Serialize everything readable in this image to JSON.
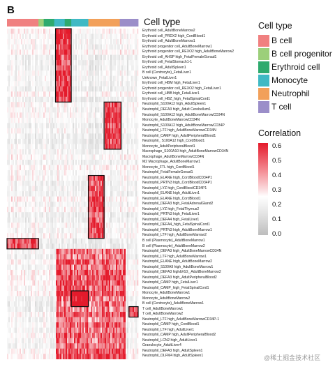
{
  "panel_letter": "B",
  "cell_type_header": "Cell type",
  "legend": {
    "title": "Cell type",
    "items": [
      {
        "label": "B cell",
        "color": "#f08080"
      },
      {
        "label": "B cell progenitor",
        "color": "#9ccf7a"
      },
      {
        "label": "Erythroid cell",
        "color": "#2eaa6e"
      },
      {
        "label": "Monocyte",
        "color": "#3fb9c4"
      },
      {
        "label": "Neutrophil",
        "color": "#f2a05a"
      },
      {
        "label": "T cell",
        "color": "#9b8ec9"
      }
    ]
  },
  "colorbar": {
    "title": "Correlation",
    "ticks": [
      "0.6",
      "0.5",
      "0.4",
      "0.3",
      "0.2",
      "0.1",
      "0.0"
    ],
    "high_color": "#e41a2b",
    "mid_color": "#ffffff",
    "low_color": "#bdbdbd"
  },
  "watermark": "@稀土掘金技术社区",
  "chart_data": {
    "type": "heatmap",
    "value_range": [
      0.0,
      0.6
    ],
    "rows": [
      "Erythroid cell_AdultBoneMarrow2",
      "Erythroid cell_PRDX2 high_CordBlood1",
      "Erythroid cell_AdultBoneMarrow1",
      "Erythroid progenitor cell_AdultBoneMarrow1",
      "Erythroid progenitor cell_REXO2 high_AdultBoneMarrow2",
      "Erythroid cell_AHSP high_FetalFemaleGonad1",
      "Erythroid cell_FetalStomach1-1",
      "Erythroid cell_AdultSpleen1",
      "B cell (Centrocyte)_FetalLiver1",
      "Unknown_FetalLiver1",
      "Erythroid cell_HBM high_FetalLiver1",
      "Erythroid progenitor cell_REXO2 high_FetalLiver1",
      "Erythroid cell_HBB high_FetalLiver1",
      "Erythroid cell_HBZ_high_FetalSpinalCord1",
      "Neutrophil_S100A12 high_AdultSpleen1",
      "Neutrophil_DEFA3 high_Adult Cerebellum1",
      "Neutrophil_S100A12 high_AdultBoneMarrowCD34N",
      "Monocyte_AdultBoneMarrowCD34N",
      "Neutrophil_S100A12 high_AdultBoneMarrowCD34P",
      "Neutrophil_LTF high_AdultBoneMarrowCD34N",
      "Neutrophil_CAMP high_AdultPeripheralBlood1",
      "Neutrophil_ S100A12 high_CordBlood1",
      "Monocyte_AdultPeripheralBlood1",
      "Macrophage_S100A10 high_AdultBoneMarrowCD34N",
      "Macrophage_AdultBoneMarrowCD34N",
      "M2 Macrophage_AdultBoneMarrow1",
      "Monocyte_FTL high_CordBlood1",
      "Neutrophil_FetalFemaleGonad1",
      "Neutrophil_ELANE high_CordBloodCD34P1",
      "Neutrophil_PRTN3 high_CordBloodCD34P1",
      "Neutrophil_LYZ high_CordBloodCD34P1",
      "Neutrophil_ELANE high_AdultLiver1",
      "Neutrophil_ELANE high_CordBlood1",
      "Neutrophil_DEFA3 high_FetalAdrenalGland2",
      "Neutrophil_LYZ high_FetalThymus2",
      "Neutrophil_PRTN3 high_FetalLiver1",
      "Neutrophil_DEFA4 high_FetalLiver1",
      "Neutrophil_DEFA4_high_FetalSpinalCord1",
      "Neutrophil_PRTN3 high_AdultBoneMarrow1",
      "Neutrophil_LTF high_AdultBoneMarrow2",
      "B cell (Plasmocyte)_AdultBoneMarrow1",
      "B cell (Plasmocyte)_AdultBoneMarrow2",
      "Neutrophil_DEFA3 high_AdultBoneMarrowCD34N",
      "Neutrophil_LTF high_AdultBoneMarrow1",
      "Neutrophil_ELANE high_AdultBoneMarrow2",
      "Neutrophil_S100A9 high_AdultBoneMarrow1",
      "Neutrophil_DEFA3 high&#10;_AdultBoneMarrow2",
      "Neutrophil_DEFA3 high_AdultPeripheralBlood2",
      "Neutrophil_CAMP high_FetalLiver1",
      "Neutrophil_CAMP_high_FetalSpinalCord1",
      "Monocyte_AdultBoneMarrow1",
      "Monocyte_AdultBoneMarrow2",
      "B cell (Centrocyte)_AdultBoneMarrow1",
      "T cell_AdultBoneMarrow1",
      "T cell_AdultBoneMarrow2",
      "Neutrophil_LTF high_AdultBoneMarrowCD34P-1",
      "Neutrophil_CAMP high_CordBlood1",
      "Neutrophil_LTF high_AdultLiver1",
      "Neutrophil_CAMP high_AdultPeripheralBlood2",
      "Neutrophil_LCN2 high_AdultLiver1",
      "Granulocyte_AdultLiver4",
      "Neutrophil_DEFA3 high_AdultSpleen1",
      "Neutrophil_OLFM4 high_AdultSpleen1"
    ],
    "column_groups": [
      {
        "cell_type": "B cell",
        "start": 0.0,
        "end": 0.24
      },
      {
        "cell_type": "B cell progenitor",
        "start": 0.24,
        "end": 0.28
      },
      {
        "cell_type": "Erythroid cell",
        "start": 0.28,
        "end": 0.36
      },
      {
        "cell_type": "Monocyte",
        "start": 0.36,
        "end": 0.44
      },
      {
        "cell_type": "Erythroid cell",
        "start": 0.44,
        "end": 0.49
      },
      {
        "cell_type": "Monocyte",
        "start": 0.49,
        "end": 0.62
      },
      {
        "cell_type": "Neutrophil",
        "start": 0.62,
        "end": 0.86
      },
      {
        "cell_type": "T cell",
        "start": 0.86,
        "end": 1.0
      }
    ],
    "highlight_blocks": [
      {
        "row_start": 0,
        "row_end": 13,
        "col_start": 0.37,
        "col_end": 0.49
      },
      {
        "row_start": 14,
        "row_end": 22,
        "col_start": 0.74,
        "col_end": 0.87
      },
      {
        "row_start": 28,
        "row_end": 39,
        "col_start": 0.62,
        "col_end": 0.74
      },
      {
        "row_start": 40,
        "row_end": 41,
        "col_start": 0.0,
        "col_end": 0.24
      },
      {
        "row_start": 50,
        "row_end": 52,
        "col_start": 0.49,
        "col_end": 0.62
      },
      {
        "row_start": 53,
        "row_end": 54,
        "col_start": 0.93,
        "col_end": 1.0
      }
    ],
    "high_correlation_regions": [
      {
        "row_start": 42,
        "row_end": 62,
        "col_start": 0.37,
        "col_end": 0.9,
        "level": 0.35
      }
    ]
  }
}
